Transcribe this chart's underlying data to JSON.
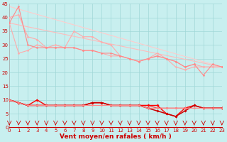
{
  "xlabel": "Vent moyen/en rafales ( km/h )",
  "xlim": [
    0,
    23
  ],
  "ylim": [
    0,
    45
  ],
  "yticks": [
    0,
    5,
    10,
    15,
    20,
    25,
    30,
    35,
    40,
    45
  ],
  "xticks": [
    0,
    1,
    2,
    3,
    4,
    5,
    6,
    7,
    8,
    9,
    10,
    11,
    12,
    13,
    14,
    15,
    16,
    17,
    18,
    19,
    20,
    21,
    22,
    23
  ],
  "bg_color": "#c8efef",
  "grid_color": "#a0d8d8",
  "series": [
    {
      "x": [
        0,
        1,
        2,
        3,
        4,
        5,
        6,
        7,
        8,
        9,
        10,
        11,
        12,
        13,
        14,
        15,
        16,
        17,
        18,
        19,
        20,
        21,
        22,
        23
      ],
      "y": [
        38,
        27,
        28,
        30,
        29,
        30,
        29,
        35,
        33,
        33,
        31,
        30,
        26,
        25,
        24,
        25,
        27,
        25,
        22,
        21,
        22,
        22,
        22,
        22
      ],
      "color": "#ffaaaa",
      "linewidth": 0.8,
      "marker": "D",
      "markersize": 1.5
    },
    {
      "x": [
        0,
        1,
        2,
        3,
        4,
        5,
        6,
        7,
        8,
        9,
        10,
        11,
        12,
        13,
        14,
        15,
        16,
        17,
        18,
        19,
        20,
        21,
        22,
        23
      ],
      "y": [
        40,
        41,
        33,
        32,
        29,
        29,
        29,
        29,
        28,
        28,
        27,
        26,
        26,
        25,
        24,
        25,
        26,
        25,
        24,
        22,
        23,
        22,
        22,
        22
      ],
      "color": "#ffaaaa",
      "linewidth": 0.8,
      "marker": "D",
      "markersize": 1.5
    },
    {
      "x": [
        0,
        1,
        2,
        3,
        4,
        5,
        6,
        7,
        8,
        9,
        10,
        11,
        12,
        13,
        14,
        15,
        16,
        17,
        18,
        19,
        20,
        21,
        22,
        23
      ],
      "y": [
        38,
        44,
        30,
        29,
        29,
        29,
        29,
        29,
        28,
        28,
        27,
        27,
        26,
        25,
        24,
        25,
        26,
        25,
        24,
        22,
        23,
        19,
        23,
        22
      ],
      "color": "#ff8888",
      "linewidth": 0.8,
      "marker": "D",
      "markersize": 1.5
    },
    {
      "x": [
        0,
        23
      ],
      "y": [
        38,
        22
      ],
      "color": "#ffbbbb",
      "linewidth": 0.8,
      "marker": null,
      "markersize": 0
    },
    {
      "x": [
        0,
        23
      ],
      "y": [
        44,
        22
      ],
      "color": "#ffcccc",
      "linewidth": 0.8,
      "marker": null,
      "markersize": 0
    },
    {
      "x": [
        0,
        1,
        2,
        3,
        4,
        5,
        6,
        7,
        8,
        9,
        10,
        11,
        12,
        13,
        14,
        15,
        16,
        17,
        18,
        19,
        20,
        21,
        22,
        23
      ],
      "y": [
        10,
        9,
        8,
        8,
        8,
        8,
        8,
        8,
        8,
        9,
        9,
        8,
        8,
        8,
        8,
        8,
        7,
        7,
        7,
        7,
        8,
        7,
        7,
        7
      ],
      "color": "#ff4444",
      "linewidth": 0.9,
      "marker": "D",
      "markersize": 1.5
    },
    {
      "x": [
        0,
        1,
        2,
        3,
        4,
        5,
        6,
        7,
        8,
        9,
        10,
        11,
        12,
        13,
        14,
        15,
        16,
        17,
        18,
        19,
        20,
        21,
        22,
        23
      ],
      "y": [
        10,
        9,
        8,
        10,
        8,
        8,
        8,
        8,
        8,
        9,
        9,
        8,
        8,
        8,
        8,
        8,
        8,
        5,
        4,
        7,
        8,
        7,
        7,
        7
      ],
      "color": "#ff0000",
      "linewidth": 1.0,
      "marker": "D",
      "markersize": 1.8
    },
    {
      "x": [
        0,
        1,
        2,
        3,
        4,
        5,
        6,
        7,
        8,
        9,
        10,
        11,
        12,
        13,
        14,
        15,
        16,
        17,
        18,
        19,
        20,
        21,
        22,
        23
      ],
      "y": [
        10,
        9,
        8,
        8,
        8,
        8,
        8,
        8,
        8,
        9,
        9,
        8,
        8,
        8,
        8,
        7,
        6,
        5,
        4,
        6,
        8,
        7,
        7,
        7
      ],
      "color": "#cc0000",
      "linewidth": 1.1,
      "marker": "D",
      "markersize": 1.8
    },
    {
      "x": [
        0,
        1,
        2,
        3,
        4,
        5,
        6,
        7,
        8,
        9,
        10,
        11,
        12,
        13,
        14,
        15,
        16,
        17,
        18,
        19,
        20,
        21,
        22,
        23
      ],
      "y": [
        10,
        9,
        8,
        8,
        8,
        8,
        8,
        8,
        8,
        8,
        8,
        8,
        8,
        8,
        8,
        7,
        7,
        7,
        7,
        7,
        7,
        7,
        7,
        7
      ],
      "color": "#ff8888",
      "linewidth": 0.8,
      "marker": "D",
      "markersize": 1.5
    }
  ],
  "arrow_color": "#cc0000",
  "axis_label_fontsize": 6.5,
  "tick_fontsize": 5.0
}
